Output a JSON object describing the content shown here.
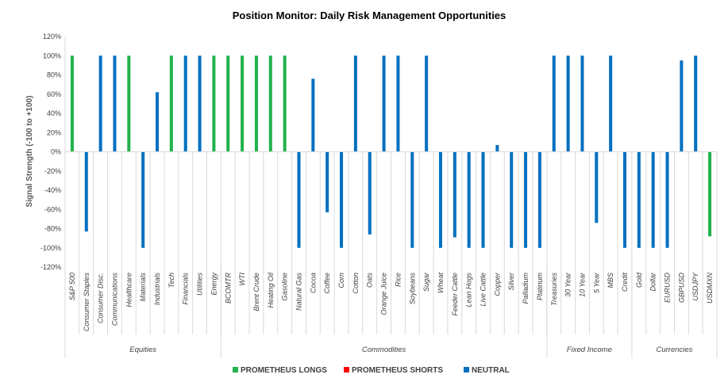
{
  "chart_data": {
    "type": "bar",
    "title": "Position Monitor: Daily Risk Management Opportunities",
    "ylabel": "Signal Strength (-100 to +100)",
    "xlabel": "",
    "ylim": [
      -120,
      120
    ],
    "yticks": [
      -120,
      -100,
      -80,
      -60,
      -40,
      -20,
      0,
      20,
      40,
      60,
      80,
      100,
      120
    ],
    "ytick_labels": [
      "-120%",
      "-100%",
      "-80%",
      "-60%",
      "-40%",
      "-20%",
      "0%",
      "20%",
      "40%",
      "60%",
      "80%",
      "100%",
      "120%"
    ],
    "grid": false,
    "legend_position": "bottom",
    "colors": {
      "longs": "#21b24b",
      "shorts": "#ff0000",
      "neutral": "#0070c0"
    },
    "legend": [
      {
        "label": "PROMETHEUS LONGS",
        "color": "#21b24b"
      },
      {
        "label": "PROMETHEUS SHORTS",
        "color": "#ff0000"
      },
      {
        "label": "NEUTRAL",
        "color": "#0070c0"
      }
    ],
    "groups": [
      {
        "name": "Equities",
        "start": 0,
        "end": 10
      },
      {
        "name": "Commodities",
        "start": 11,
        "end": 33
      },
      {
        "name": "Fixed Income",
        "start": 34,
        "end": 39
      },
      {
        "name": "Currencies",
        "start": 40,
        "end": 45
      }
    ],
    "categories": [
      "S&P 500",
      "Consumer Staples",
      "Consumer Disc.",
      "Communications",
      "Healthcare",
      "Materials",
      "Industrials",
      "Tech",
      "Financials",
      "Utilities",
      "Energy",
      "BCOMTR",
      "WTI",
      "Brent Crude",
      "Heating Oil",
      "Gasoline",
      "Natural Gas",
      "Cocoa",
      "Coffee",
      "Corn",
      "Cotton",
      "Oats",
      "Orange Juice",
      "Rice",
      "Soybeans",
      "Sugar",
      "Wheat",
      "Feeder Cattle",
      "Lean Hogs",
      "Live Cattle",
      "Copper",
      "Silver",
      "Palladium",
      "Platinum",
      "Treasuries",
      "30 Year",
      "10 Year",
      "5 Year",
      "MBS",
      "Credit",
      "Gold",
      "Dollar",
      "EURUSD",
      "GBPUSD",
      "USDJPY",
      "USDMXN"
    ],
    "series": [
      {
        "name": "PROMETHEUS LONGS",
        "color": "#21b24b",
        "values": [
          100,
          null,
          null,
          null,
          100,
          null,
          null,
          100,
          null,
          null,
          100,
          100,
          100,
          100,
          100,
          100,
          null,
          null,
          null,
          null,
          null,
          null,
          null,
          null,
          null,
          null,
          null,
          null,
          null,
          null,
          null,
          null,
          null,
          null,
          null,
          null,
          null,
          null,
          null,
          null,
          null,
          null,
          null,
          null,
          null,
          -88
        ]
      },
      {
        "name": "PROMETHEUS SHORTS",
        "color": "#ff0000",
        "values": [
          null,
          null,
          null,
          null,
          null,
          null,
          null,
          null,
          null,
          null,
          null,
          null,
          null,
          null,
          null,
          null,
          null,
          null,
          null,
          null,
          null,
          null,
          null,
          null,
          null,
          null,
          null,
          null,
          null,
          null,
          null,
          null,
          null,
          null,
          null,
          null,
          null,
          null,
          null,
          null,
          null,
          null,
          null,
          null,
          null,
          null
        ]
      },
      {
        "name": "NEUTRAL",
        "color": "#0070c0",
        "values": [
          null,
          -83,
          100,
          100,
          null,
          -100,
          62,
          null,
          100,
          100,
          null,
          null,
          null,
          null,
          null,
          null,
          -100,
          76,
          -63,
          -100,
          100,
          -86,
          100,
          100,
          -100,
          100,
          -100,
          -89,
          -100,
          -100,
          7,
          -100,
          -100,
          -100,
          100,
          100,
          100,
          -74,
          100,
          -100,
          -100,
          -100,
          -100,
          95,
          100,
          null
        ]
      }
    ]
  }
}
